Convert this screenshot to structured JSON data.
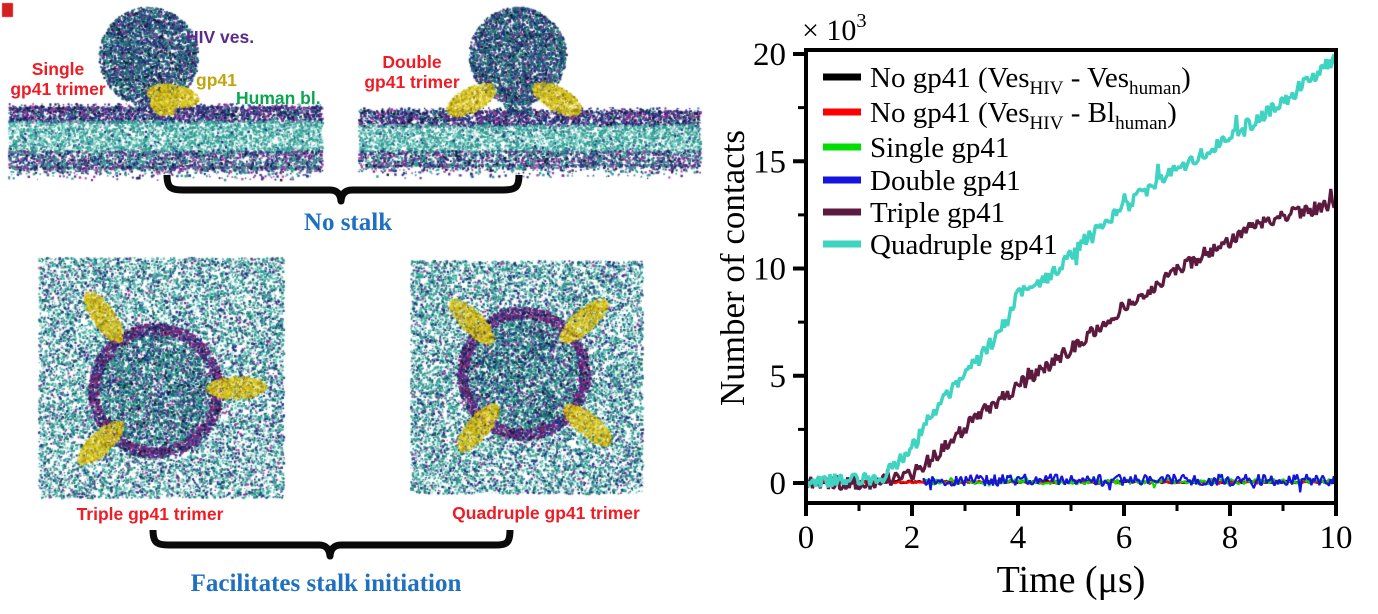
{
  "figure": {
    "left_panel": {
      "snapshots": [
        {
          "id": "single",
          "label_line1": "Single",
          "label_line2": "gp41 trimer",
          "view": "side"
        },
        {
          "id": "double",
          "label_line1": "Double",
          "label_line2": "gp41 trimer",
          "view": "side"
        },
        {
          "id": "triple",
          "label": "Triple gp41 trimer",
          "view": "top"
        },
        {
          "id": "quadruple",
          "label": "Quadruple gp41 trimer",
          "view": "top"
        }
      ],
      "annotations": {
        "hiv_ves": "HIV ves.",
        "gp41": "gp41",
        "human_bl": "Human bl."
      },
      "captions": {
        "no_stalk": "No stalk",
        "facilitates": "Facilitates stalk initiation"
      },
      "colors": {
        "label_red": "#ee1c24",
        "annotation_purple": "#5b2a8e",
        "annotation_yellow": "#c2a50a",
        "annotation_green": "#0aa551",
        "caption_blue": "#1f70c0",
        "membrane_teal": "#2f9a90",
        "vesicle_navy": "#1c2f80",
        "gp41_yellow": "#d8c41a"
      }
    },
    "chart_data": {
      "type": "line",
      "title": "",
      "xlabel": "Time (μs)",
      "ylabel": "Number of contacts",
      "scale_label": "× 10^{3}",
      "y_scale_factor": 1000,
      "xlim": [
        0,
        10
      ],
      "ylim": [
        -0.9,
        20.3
      ],
      "x_major_ticks": [
        0,
        2,
        4,
        6,
        8,
        10
      ],
      "x_minor_ticks": [
        1,
        3,
        5,
        7,
        9
      ],
      "y_major_ticks": [
        0,
        5,
        10,
        15,
        20
      ],
      "y_minor_ticks": [
        2.5,
        7.5,
        12.5,
        17.5
      ],
      "grid": false,
      "legend_position": "top-left inside",
      "series": [
        {
          "name": "No gp41 (Ves_{HIV} - Ves_{human})",
          "color": "#000000",
          "noise": 0.05,
          "width": 2.5,
          "x": [
            0,
            10
          ],
          "y": [
            0.05,
            0.05
          ]
        },
        {
          "name": "No gp41 (Ves_{HIV} - Bl_{human})",
          "color": "#ff0000",
          "noise": 0.05,
          "width": 2.5,
          "x": [
            0,
            10
          ],
          "y": [
            0.05,
            0.05
          ]
        },
        {
          "name": "Single gp41",
          "color": "#00dd00",
          "noise": 0.13,
          "width": 2,
          "x": [
            2.25,
            10
          ],
          "y": [
            0.05,
            0.08
          ]
        },
        {
          "name": "Double gp41",
          "color": "#1414dd",
          "noise": 0.28,
          "width": 2.2,
          "x": [
            2.2,
            3,
            4,
            5,
            6,
            7,
            8,
            9,
            10
          ],
          "y": [
            0.12,
            0.15,
            0.13,
            0.16,
            0.12,
            0.15,
            0.14,
            0.13,
            0.15
          ]
        },
        {
          "name": "Triple gp41",
          "color": "#5c1a3e",
          "noise": 0.33,
          "width": 3.2,
          "x": [
            0,
            0.4,
            0.8,
            1.2,
            1.5,
            1.8,
            2.1,
            2.4,
            2.8,
            3.2,
            3.6,
            4.0,
            4.4,
            4.8,
            5.2,
            5.6,
            6.0,
            6.4,
            6.8,
            7.2,
            7.6,
            8.0,
            8.4,
            8.8,
            9.2,
            9.6,
            10.0
          ],
          "y": [
            0.0,
            0.05,
            0.0,
            0.05,
            0.1,
            0.2,
            0.6,
            1.2,
            2.1,
            3.0,
            3.8,
            4.5,
            5.2,
            5.9,
            6.6,
            7.4,
            8.2,
            8.9,
            9.6,
            10.2,
            10.8,
            11.3,
            11.9,
            12.3,
            12.6,
            12.8,
            13.1
          ]
        },
        {
          "name": "Quadruple gp41",
          "color": "#3fd4c2",
          "noise": 0.35,
          "width": 3.5,
          "x": [
            0,
            0.3,
            0.6,
            0.9,
            1.2,
            1.45,
            1.7,
            2.0,
            2.3,
            2.6,
            3.0,
            3.4,
            3.8,
            4.0,
            4.3,
            4.6,
            5.0,
            5.4,
            5.8,
            6.2,
            6.6,
            7.0,
            7.4,
            7.8,
            8.2,
            8.6,
            9.0,
            9.4,
            9.7,
            10.0
          ],
          "y": [
            0.1,
            0.12,
            0.1,
            0.13,
            0.1,
            0.2,
            0.9,
            1.6,
            2.9,
            3.9,
            5.1,
            6.2,
            7.6,
            8.8,
            9.3,
            9.7,
            10.7,
            11.6,
            12.4,
            13.2,
            14.0,
            14.7,
            15.2,
            15.9,
            16.5,
            17.1,
            17.8,
            18.6,
            19.2,
            19.8
          ]
        }
      ]
    }
  }
}
